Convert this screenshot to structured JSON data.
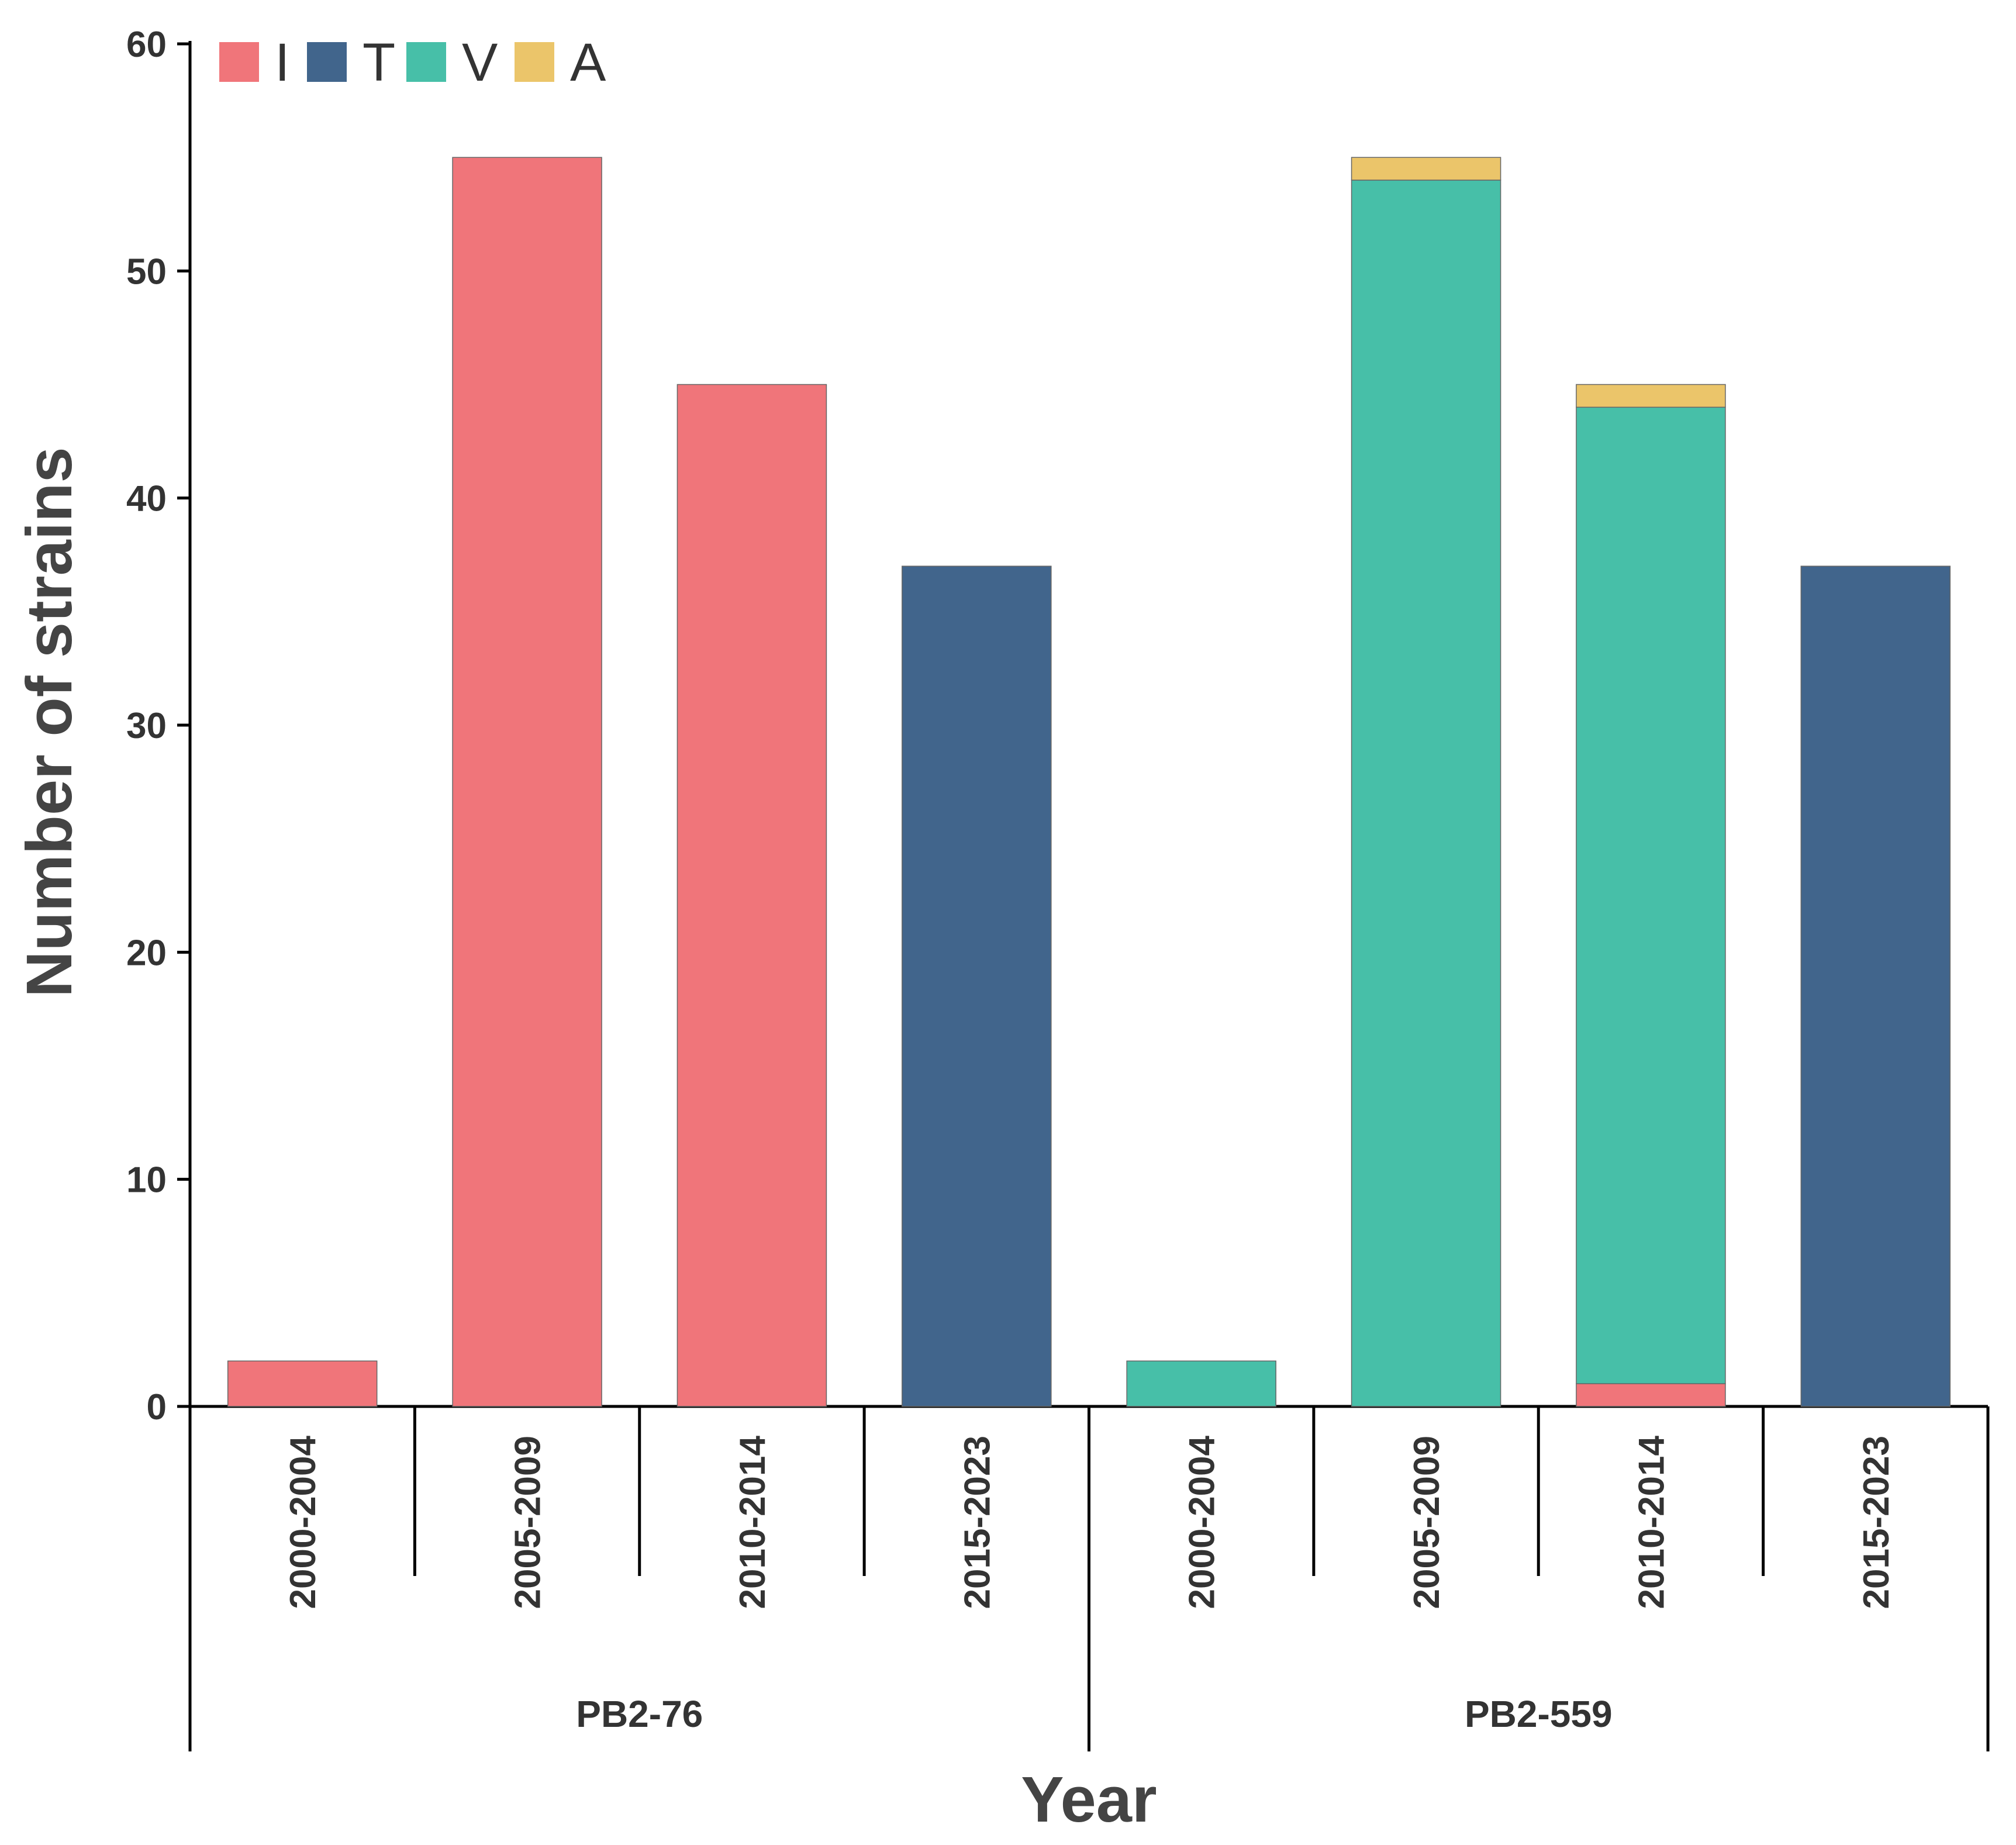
{
  "chart_data": {
    "type": "bar",
    "stacked": true,
    "ylabel": "Number of strains",
    "xlabel": "Year",
    "ylim": [
      0,
      60
    ],
    "yticks": [
      0,
      10,
      20,
      30,
      40,
      50,
      60
    ],
    "legend": {
      "position": "top-left",
      "entries": [
        {
          "label": "I",
          "color": "#F0757A"
        },
        {
          "label": "T",
          "color": "#41658C"
        },
        {
          "label": "V",
          "color": "#47BFA8"
        },
        {
          "label": "A",
          "color": "#EBC56A"
        }
      ]
    },
    "groups": [
      {
        "name": "PB2-76",
        "categories": [
          "2000-2004",
          "2005-2009",
          "2010-2014",
          "2015-2023"
        ]
      },
      {
        "name": "PB2-559",
        "categories": [
          "2000-2004",
          "2005-2009",
          "2010-2014",
          "2015-2023"
        ]
      }
    ],
    "categories": [
      "2000-2004",
      "2005-2009",
      "2010-2014",
      "2015-2023",
      "2000-2004",
      "2005-2009",
      "2010-2014",
      "2015-2023"
    ],
    "series": [
      {
        "name": "I",
        "values": [
          2,
          55,
          45,
          0,
          0,
          0,
          1,
          0
        ]
      },
      {
        "name": "T",
        "values": [
          0,
          0,
          0,
          37,
          0,
          0,
          0,
          37
        ]
      },
      {
        "name": "V",
        "values": [
          0,
          0,
          0,
          0,
          2,
          54,
          43,
          0
        ]
      },
      {
        "name": "A",
        "values": [
          0,
          0,
          0,
          0,
          0,
          1,
          1,
          0
        ]
      }
    ]
  }
}
